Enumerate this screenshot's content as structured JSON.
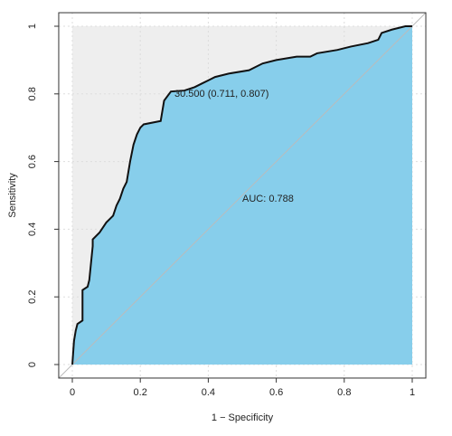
{
  "chart_data": {
    "type": "roc",
    "x_label": "1 − Specificity",
    "y_label": "Sensitivity",
    "annotations": [
      "30.500 (0.711, 0.807)",
      "AUC: 0.788"
    ],
    "series": [
      {
        "color": "#111111",
        "fill": "#87ceeb",
        "x": [
          0,
          0.005,
          0.01,
          0.015,
          0.03,
          0.03,
          0.045,
          0.05,
          0.06,
          0.06,
          0.08,
          0.1,
          0.11,
          0.12,
          0.13,
          0.14,
          0.15,
          0.16,
          0.17,
          0.18,
          0.19,
          0.2,
          0.21,
          0.26,
          0.27,
          0.29,
          0.33,
          0.36,
          0.38,
          0.4,
          0.42,
          0.46,
          0.52,
          0.54,
          0.56,
          0.6,
          0.66,
          0.7,
          0.72,
          0.78,
          0.82,
          0.87,
          0.9,
          0.91,
          0.94,
          0.98,
          1
        ],
        "values": [
          0,
          0.07,
          0.1,
          0.12,
          0.13,
          0.22,
          0.23,
          0.25,
          0.35,
          0.37,
          0.39,
          0.42,
          0.43,
          0.44,
          0.47,
          0.49,
          0.52,
          0.54,
          0.6,
          0.65,
          0.68,
          0.7,
          0.71,
          0.72,
          0.78,
          0.807,
          0.81,
          0.82,
          0.83,
          0.84,
          0.85,
          0.86,
          0.87,
          0.88,
          0.89,
          0.9,
          0.91,
          0.91,
          0.92,
          0.93,
          0.94,
          0.95,
          0.96,
          0.98,
          0.99,
          1,
          1
        ]
      }
    ],
    "xlim": [
      0,
      1
    ],
    "ylim": [
      0,
      1
    ],
    "xticks": [
      0,
      0.2,
      0.4,
      0.6,
      0.8,
      1
    ],
    "yticks": [
      0,
      0.2,
      0.4,
      0.6,
      0.8,
      1
    ],
    "grid": true,
    "background": "#eeeeee",
    "diagonal_color": "#bbbbbb"
  }
}
